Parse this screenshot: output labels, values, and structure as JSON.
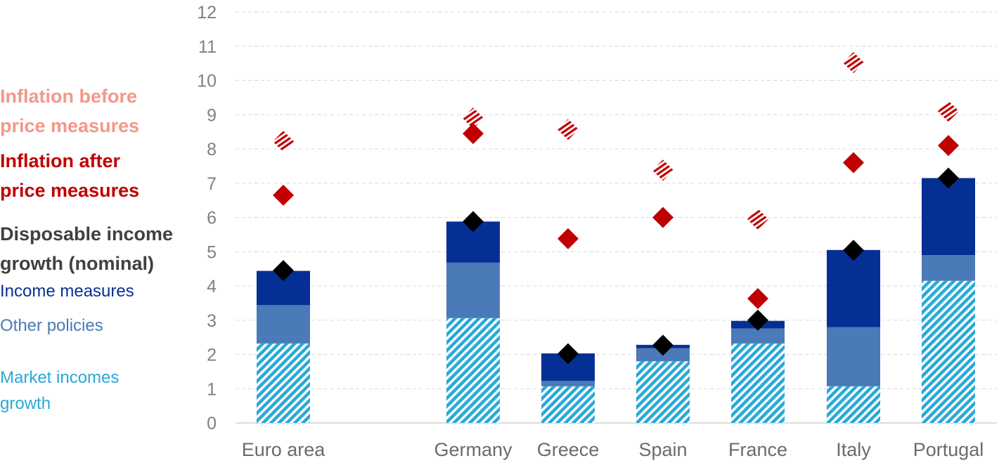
{
  "chart_data": {
    "type": "bar",
    "stacked": true,
    "categories": [
      "Euro area",
      "Germany",
      "Greece",
      "Spain",
      "France",
      "Italy",
      "Portugal"
    ],
    "ylim": [
      0,
      12
    ],
    "yticks": [
      0,
      1,
      2,
      3,
      4,
      5,
      6,
      7,
      8,
      9,
      10,
      11,
      12
    ],
    "grid": true,
    "legend_position": "left",
    "series": [
      {
        "name": "Market incomes growth",
        "kind": "bar",
        "color": "#29a9d6",
        "pattern": "diagonal-hatch",
        "values": [
          2.32,
          3.06,
          1.07,
          1.8,
          2.32,
          1.07,
          4.15
        ]
      },
      {
        "name": "Other policies",
        "kind": "bar",
        "color": "#4a7ab8",
        "values": [
          1.12,
          1.62,
          0.16,
          0.38,
          0.44,
          1.73,
          0.75
        ]
      },
      {
        "name": "Income measures",
        "kind": "bar",
        "color": "#062f96",
        "values": [
          1.0,
          1.2,
          0.8,
          0.1,
          0.22,
          2.25,
          2.25
        ]
      },
      {
        "name": "Disposable income growth (nominal)",
        "kind": "marker",
        "color": "#000000",
        "values": [
          4.45,
          5.88,
          2.02,
          2.27,
          3.0,
          5.04,
          7.15
        ]
      },
      {
        "name": "Inflation after price measures",
        "kind": "marker",
        "color": "#c00000",
        "values": [
          6.65,
          8.45,
          5.38,
          6.0,
          3.63,
          7.6,
          8.1
        ]
      },
      {
        "name": "Inflation before price measures",
        "kind": "marker",
        "color": "#c00000",
        "pattern": "stripes",
        "values": [
          8.22,
          8.9,
          8.57,
          7.38,
          5.95,
          10.52,
          9.1
        ]
      }
    ]
  },
  "legend": {
    "before_line1": "Inflation before",
    "before_line2": "price measures",
    "after_line1": "Inflation after",
    "after_line2": "price measures",
    "disp_line1": "Disposable income",
    "disp_line2": "growth (nominal)",
    "income": "Income measures",
    "other": "Other policies",
    "market_line1": "Market incomes",
    "market_line2": "growth"
  },
  "colors": {
    "before": "#f4978a",
    "after": "#c00000",
    "disp": "#404040",
    "income": "#062f96",
    "other": "#4a7ab8",
    "market": "#29a9d6"
  }
}
